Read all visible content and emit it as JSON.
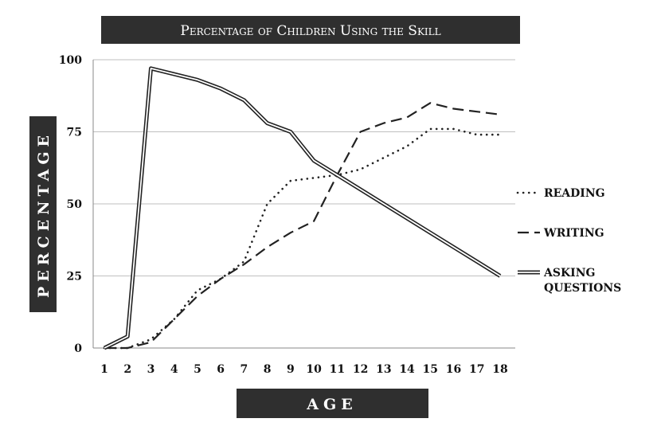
{
  "chart_data": {
    "type": "line",
    "title": "Percentage of Children Using the Skill",
    "xlabel": "Age",
    "ylabel": "Percentage",
    "xlim": [
      1,
      18
    ],
    "ylim": [
      0,
      100
    ],
    "grid": true,
    "legend_position": "right",
    "categories": [
      "1",
      "2",
      "3",
      "4",
      "5",
      "6",
      "7",
      "8",
      "9",
      "10",
      "11",
      "12",
      "13",
      "14",
      "15",
      "16",
      "17",
      "18"
    ],
    "y_ticks": [
      "0",
      "25",
      "50",
      "75",
      "100"
    ],
    "series": [
      {
        "name": "READING",
        "style": "dotted",
        "values": [
          0,
          0,
          3,
          10,
          20,
          24,
          30,
          50,
          58,
          59,
          60,
          62,
          66,
          70,
          76,
          76,
          74,
          74
        ]
      },
      {
        "name": "WRITING",
        "style": "dashed",
        "values": [
          0,
          0,
          2,
          10,
          18,
          24,
          29,
          35,
          40,
          44,
          60,
          75,
          78,
          80,
          85,
          83,
          82,
          81
        ]
      },
      {
        "name": "ASKING QUESTIONS",
        "style": "double",
        "values": [
          0,
          4,
          97,
          95,
          93,
          90,
          86,
          78,
          75,
          65,
          60,
          55,
          50,
          45,
          40,
          35,
          30,
          25
        ]
      }
    ]
  },
  "colors": {
    "banner": "#2f2f2f",
    "line": "#222222",
    "grid": "#bfbfbf"
  }
}
